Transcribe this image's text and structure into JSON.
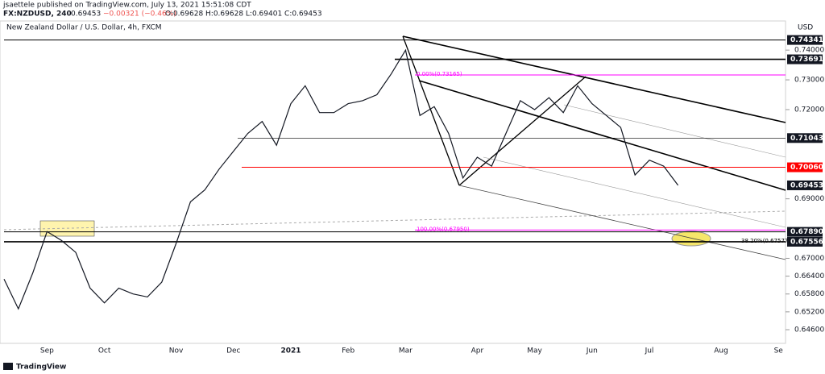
{
  "chart_data": {
    "type": "line",
    "publisher": "jsaettele published on TradingView.com, July 13, 2021 15:51:08 CDT",
    "symbol": "FX:NZDUSD, 240",
    "last": "0.69453",
    "change": "−0.00321 (−0.46%)",
    "ohlc": "O:0.69628 H:0.69628 L:0.69401 C:0.69453",
    "title": "New Zealand Dollar / U.S. Dollar, 4h, FXCM",
    "currency": "USD",
    "footer": "TradingView",
    "categories": [
      null,
      null,
      null,
      "Sep",
      null,
      null,
      null,
      "Oct",
      null,
      null,
      null,
      null,
      "Nov",
      null,
      null,
      null,
      "Dec",
      null,
      null,
      null,
      "2021",
      null,
      null,
      null,
      "Feb",
      null,
      null,
      null,
      "Mar",
      null,
      null,
      null,
      null,
      "Apr",
      null,
      null,
      null,
      "May",
      null,
      null,
      null,
      "Jun",
      null,
      null,
      null,
      "Jul",
      null,
      null,
      null,
      null,
      "Aug",
      null,
      null,
      null,
      "Se"
    ],
    "series": [
      {
        "name": "NZDUSD",
        "color": "#131722",
        "values": [
          0.663,
          0.653,
          0.665,
          0.679,
          0.676,
          0.672,
          0.66,
          0.655,
          0.66,
          0.658,
          0.657,
          0.662,
          0.675,
          0.689,
          0.693,
          0.7,
          0.706,
          0.712,
          0.716,
          0.708,
          0.722,
          0.728,
          0.719,
          0.719,
          0.722,
          0.723,
          0.725,
          0.732,
          0.74,
          0.718,
          0.721,
          0.712,
          0.697,
          0.704,
          0.701,
          0.712,
          0.723,
          0.72,
          0.724,
          0.719,
          0.728,
          0.722,
          0.718,
          0.714,
          0.698,
          0.703,
          0.701,
          0.69453,
          null,
          null,
          null,
          null,
          null,
          null,
          null
        ]
      }
    ],
    "ylim": [
      0.6414,
      0.7498
    ],
    "yticks": [
      {
        "value": 0.74,
        "label": "0.74000"
      },
      {
        "value": 0.73,
        "label": "0.73000"
      },
      {
        "value": 0.72,
        "label": "0.72000"
      },
      {
        "value": 0.69,
        "label": "0.69000"
      },
      {
        "value": 0.67,
        "label": "0.67000"
      },
      {
        "value": 0.664,
        "label": "0.66400"
      },
      {
        "value": 0.658,
        "label": "0.65800"
      },
      {
        "value": 0.652,
        "label": "0.65200"
      },
      {
        "value": 0.646,
        "label": "0.64600"
      }
    ],
    "levels": [
      {
        "value": 0.74341,
        "label": "0.74341",
        "color": "#000000"
      },
      {
        "value": 0.73691,
        "label": "0.73691",
        "color": "#000000"
      },
      {
        "value": 0.71043,
        "label": "0.71043",
        "color": "#000000"
      },
      {
        "value": 0.7006,
        "label": "0.70060",
        "color": "#ff0000"
      },
      {
        "value": 0.69453,
        "label": "0.69453",
        "color": "#000000"
      },
      {
        "value": 0.6789,
        "label": "0.67890",
        "color": "#000000"
      },
      {
        "value": 0.67556,
        "label": "0.67556",
        "color": "#000000"
      }
    ],
    "fib_levels": [
      {
        "value": 0.73165,
        "label": "0.00%(0.73165)",
        "color": "#ff00ff"
      },
      {
        "value": 0.6795,
        "label": "100.00%(0.67950)",
        "color": "#ff00ff"
      },
      {
        "value": 0.67577,
        "label": "38.20%(0.67577)",
        "color": "#000000"
      }
    ]
  }
}
